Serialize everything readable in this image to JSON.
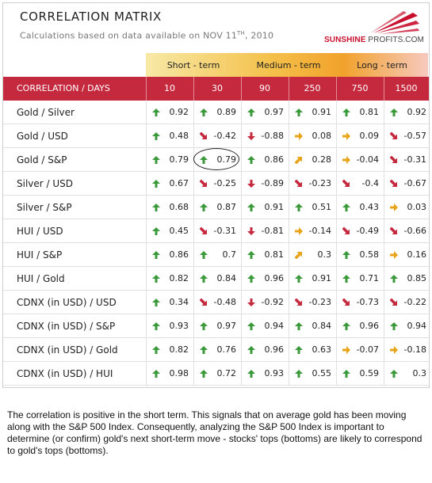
{
  "header": {
    "title": "CORRELATION MATRIX",
    "subtitle_prefix": "Calculations based on data available on  NOV 11",
    "subtitle_sup": "TH",
    "subtitle_suffix": ", 2010",
    "logo_sunshine": "SUNSHINE",
    "logo_profits": "PROFITS.COM"
  },
  "terms": [
    {
      "label": "Short - term"
    },
    {
      "label": "Medium - term"
    },
    {
      "label": "Long - term"
    }
  ],
  "table": {
    "corner_label": "CORRELATION / DAYS",
    "columns": [
      "10",
      "30",
      "90",
      "250",
      "750",
      "1500"
    ],
    "rows": [
      {
        "name": "Gold / Silver",
        "values": [
          "0.92",
          "0.89",
          "0.97",
          "0.91",
          "0.81",
          "0.92"
        ],
        "arrows": [
          "up",
          "up",
          "up",
          "up",
          "up",
          "up"
        ]
      },
      {
        "name": "Gold / USD",
        "values": [
          "0.48",
          "-0.42",
          "-0.88",
          "0.08",
          "0.09",
          "-0.57"
        ],
        "arrows": [
          "up",
          "down-right",
          "down",
          "right",
          "right",
          "down-right"
        ]
      },
      {
        "name": "Gold / S&P",
        "values": [
          "0.79",
          "0.79",
          "0.86",
          "0.28",
          "-0.04",
          "-0.31"
        ],
        "arrows": [
          "up",
          "up",
          "up",
          "up-right",
          "right",
          "down-right"
        ]
      },
      {
        "name": "Silver / USD",
        "values": [
          "0.67",
          "-0.25",
          "-0.89",
          "-0.23",
          "-0.4",
          "-0.67"
        ],
        "arrows": [
          "up",
          "down-right",
          "down",
          "down-right",
          "down-right",
          "down-right"
        ]
      },
      {
        "name": "Silver / S&P",
        "values": [
          "0.68",
          "0.87",
          "0.91",
          "0.51",
          "0.43",
          "0.03"
        ],
        "arrows": [
          "up",
          "up",
          "up",
          "up",
          "up",
          "right"
        ]
      },
      {
        "name": "HUI / USD",
        "values": [
          "0.45",
          "-0.31",
          "-0.81",
          "-0.14",
          "-0.49",
          "-0.66"
        ],
        "arrows": [
          "up",
          "down-right",
          "down",
          "right",
          "down-right",
          "down-right"
        ]
      },
      {
        "name": "HUI / S&P",
        "values": [
          "0.86",
          "0.7",
          "0.81",
          "0.3",
          "0.58",
          "0.16"
        ],
        "arrows": [
          "up",
          "up",
          "up",
          "up-right",
          "up",
          "right"
        ]
      },
      {
        "name": "HUI / Gold",
        "values": [
          "0.82",
          "0.84",
          "0.96",
          "0.91",
          "0.71",
          "0.85"
        ],
        "arrows": [
          "up",
          "up",
          "up",
          "up",
          "up",
          "up"
        ]
      },
      {
        "name": "CDNX (in USD) / USD",
        "values": [
          "0.34",
          "-0.48",
          "-0.92",
          "-0.23",
          "-0.73",
          "-0.22"
        ],
        "arrows": [
          "up",
          "down-right",
          "down",
          "down-right",
          "down-right",
          "down-right"
        ]
      },
      {
        "name": "CDNX (in USD) / S&P",
        "values": [
          "0.93",
          "0.97",
          "0.94",
          "0.84",
          "0.96",
          "0.94"
        ],
        "arrows": [
          "up",
          "up",
          "up",
          "up",
          "up",
          "up"
        ]
      },
      {
        "name": "CDNX (in USD) / Gold",
        "values": [
          "0.82",
          "0.76",
          "0.96",
          "0.63",
          "-0.07",
          "-0.18"
        ],
        "arrows": [
          "up",
          "up",
          "up",
          "up",
          "right",
          "right"
        ]
      },
      {
        "name": "CDNX (in USD) / HUI",
        "values": [
          "0.98",
          "0.72",
          "0.93",
          "0.55",
          "0.59",
          "0.3"
        ],
        "arrows": [
          "up",
          "up",
          "up",
          "up",
          "up",
          "up"
        ]
      }
    ]
  },
  "arrow_colors": {
    "up": "#3a9a3a",
    "down": "#c4293e",
    "down-right": "#c4293e",
    "right": "#e8a317",
    "up-right": "#e8a317"
  },
  "note": "The correlation is positive in the short term. This signals that on average gold has been moving along with the S&P 500 Index. Consequently, analyzing the S&P 500 Index is important to determine (or confirm) gold's next short-term move - stocks' tops (bottoms) are likely to correspond to gold's tops (bottoms)."
}
